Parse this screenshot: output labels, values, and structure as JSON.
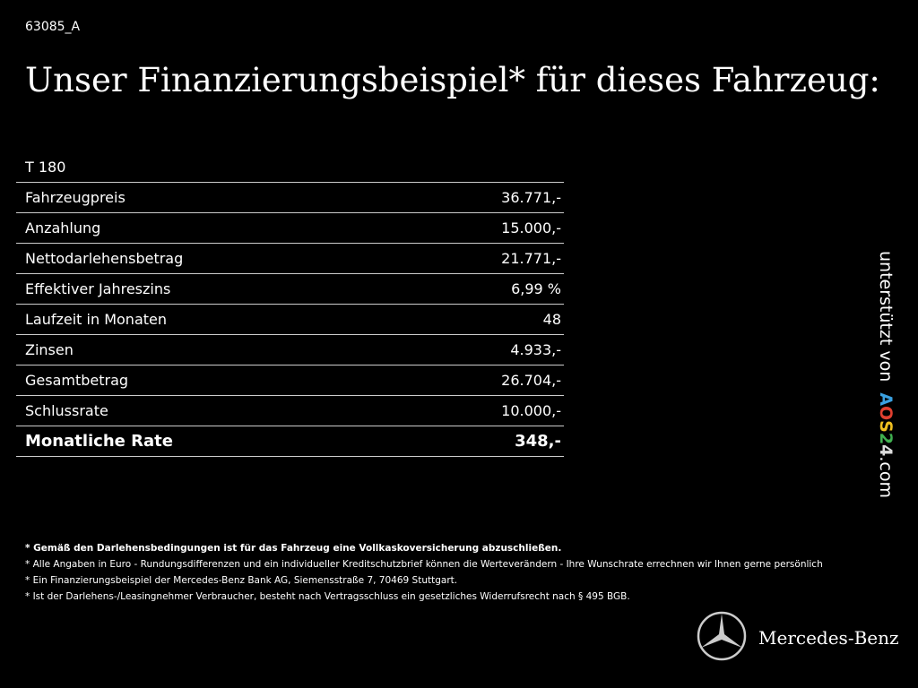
{
  "header": {
    "code": "63085_A",
    "title": "Unser Finanzierungsbeispiel* für dieses Fahrzeug:"
  },
  "table": {
    "caption": "T 180",
    "rows": [
      [
        "Fahrzeugpreis",
        "36.771,-"
      ],
      [
        "Anzahlung",
        "15.000,-"
      ],
      [
        "Nettodarlehensbetrag",
        "21.771,-"
      ],
      [
        "Effektiver Jahreszins",
        "6,99 %"
      ],
      [
        "Laufzeit in Monaten",
        "48"
      ],
      [
        "Zinsen",
        "4.933,-"
      ],
      [
        "Gesamtbetrag",
        "26.704,-"
      ],
      [
        "Schlussrate",
        "10.000,-"
      ],
      [
        "Monatliche Rate",
        "348,-"
      ]
    ]
  },
  "footnotes": [
    "* Gemäß den Darlehensbedingungen ist für das Fahrzeug eine Vollkaskoversicherung abzuschließen.",
    "* Alle Angaben in Euro - Rundungsdifferenzen und ein individueller Kreditschutzbrief können die Werteverändern - Ihre Wunschrate errechnen wir Ihnen gerne persönlich",
    "* Ein Finanzierungsbeispiel der Mercedes-Benz Bank AG, Siemensstraße 7, 70469 Stuttgart.",
    "* Ist der Darlehens-/Leasingnehmer Verbraucher, besteht nach Vertragsschluss ein gesetzliches Widerrufsrecht nach § 495 BGB."
  ],
  "side": {
    "text": "unterstützt von",
    "logo": [
      "A",
      "O",
      "S",
      "2",
      "4"
    ],
    "domain": ".com"
  },
  "brand": "Mercedes-Benz"
}
